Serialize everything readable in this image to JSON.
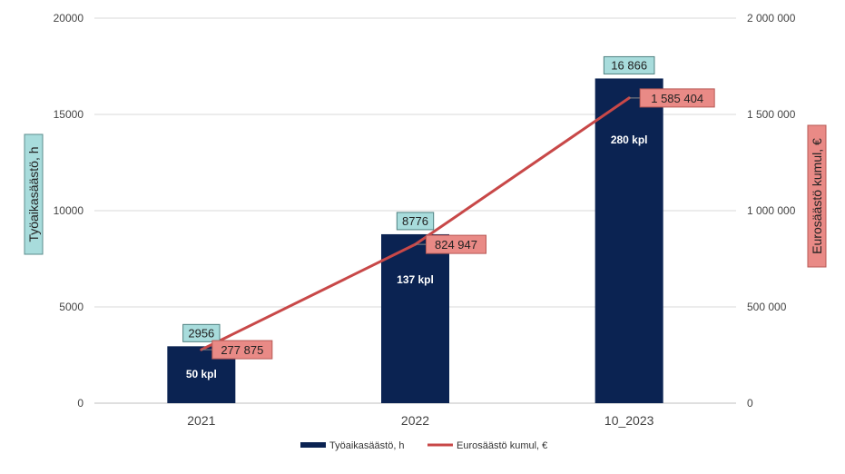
{
  "chart_data": {
    "type": "bar",
    "categories": [
      "2021",
      "2022",
      "10_2023"
    ],
    "series": [
      {
        "name": "Työaikasäästö, h",
        "kind": "bar",
        "axis": "left",
        "color": "#0b2352",
        "values": [
          2956,
          8776,
          16866
        ],
        "value_labels": [
          "2956",
          "8776",
          "16 866"
        ],
        "inner_labels": [
          "50 kpl",
          "137 kpl",
          "280 kpl"
        ]
      },
      {
        "name": "Eurosäästö kumul, €",
        "kind": "line",
        "axis": "right",
        "color": "#c84848",
        "values": [
          277875,
          824947,
          1585404
        ],
        "value_labels": [
          "277 875",
          "824 947",
          "1 585 404"
        ]
      }
    ],
    "ylabel": "Työaikasäästö, h",
    "y2label": "Eurosäästö kumul, €",
    "ylim": [
      0,
      20000
    ],
    "y2lim": [
      0,
      2000000
    ],
    "yticks": [
      "0",
      "5000",
      "10000",
      "15000",
      "20000"
    ],
    "y2ticks": [
      "0",
      "500 000",
      "1 000 000",
      "1 500 000",
      "2 000 000"
    ],
    "grid": true,
    "legend_position": "bottom",
    "colors": {
      "bar_label_bg": "#a8dcdc",
      "line_label_bg": "#e98a86",
      "grid": "#d9d9d9"
    }
  }
}
